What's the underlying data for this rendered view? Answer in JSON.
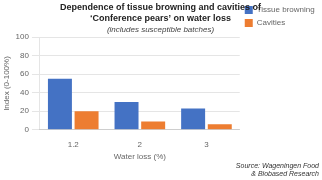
{
  "chart_data": {
    "type": "bar",
    "title": [
      "Dependence of tissue browning and cavities of",
      "‘Conference pears’ on water loss"
    ],
    "subtitle": "(includes susceptible batches)",
    "xlabel": "Water loss (%)",
    "ylabel": "Index (0-100%)",
    "categories": [
      "1.2",
      "2",
      "3"
    ],
    "series": [
      {
        "name": "Tissue browning",
        "color": "#4472C4",
        "values": [
          55,
          30,
          23
        ]
      },
      {
        "name": "Cavities",
        "color": "#ED7D31",
        "values": [
          20,
          9,
          6
        ]
      }
    ],
    "ylim": [
      0,
      100
    ],
    "yticks": [
      0,
      20,
      40,
      60,
      80,
      100
    ],
    "grid": true,
    "legend": "right",
    "annotations": [
      "Source: Wageningen Food\n& Biobased Research"
    ]
  }
}
